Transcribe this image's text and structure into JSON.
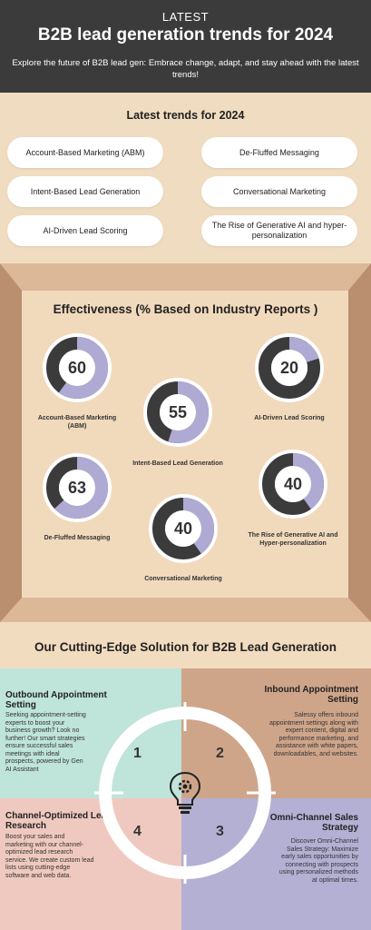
{
  "header": {
    "eyebrow": "LATEST",
    "title": "B2B lead generation trends for 2024",
    "description": "Explore the future of B2B lead gen: Embrace change, adapt, and stay ahead with the latest trends!"
  },
  "trends": {
    "title": "Latest trends for 2024",
    "items": [
      "Account-Based Marketing (ABM)",
      "De-Fluffed Messaging",
      "Intent-Based Lead Generation",
      "Conversational Marketing",
      "AI-Driven Lead Scoring",
      "The Rise of Generative AI and hyper-personalization"
    ]
  },
  "effectiveness": {
    "title": "Effectiveness (% Based on Industry Reports )",
    "items": [
      {
        "label": "Account-Based Marketing (ABM)",
        "value": 60
      },
      {
        "label": "Intent-Based Lead Generation",
        "value": 55
      },
      {
        "label": "AI-Driven Lead Scoring",
        "value": 20
      },
      {
        "label": "De-Fluffed Messaging",
        "value": 63
      },
      {
        "label": "Conversational Marketing",
        "value": 40
      },
      {
        "label": "The Rise of Generative AI and Hyper-personalization",
        "value": 40
      }
    ],
    "colors": {
      "track": "#3b3b3b",
      "fill": "#aeaad3",
      "ring": "#ffffff"
    }
  },
  "solution": {
    "title": "Our Cutting-Edge Solution for B2B Lead Generation",
    "quadrants": [
      {
        "number": "1",
        "title": "Outbound Appointment Setting",
        "body": "Seeking appointment-setting experts to boost your business growth? Look no further! Our smart strategies ensure successful sales meetings with ideal prospects, powered by Gen AI Assistant"
      },
      {
        "number": "2",
        "title": "Inbound Appointment Setting",
        "body": "Salessy offers inbound appointment settings along with expert content, digital and performance marketing, and assistance with white papers, downloadables, and websites."
      },
      {
        "number": "3",
        "title": "Omni-Channel Sales Strategy",
        "body": "Discover Omni-Channel Sales Strategy: Maximize early sales opportunities by connecting with prospects using personalized methods at optimal times."
      },
      {
        "number": "4",
        "title": "Channel-Optimized Lead Research",
        "body": "Boost your sales and marketing with our channel-optimized lead research service. We create custom lead lists using cutting-edge software and web data."
      }
    ],
    "center_icon": "lightbulb-gear-icon"
  }
}
